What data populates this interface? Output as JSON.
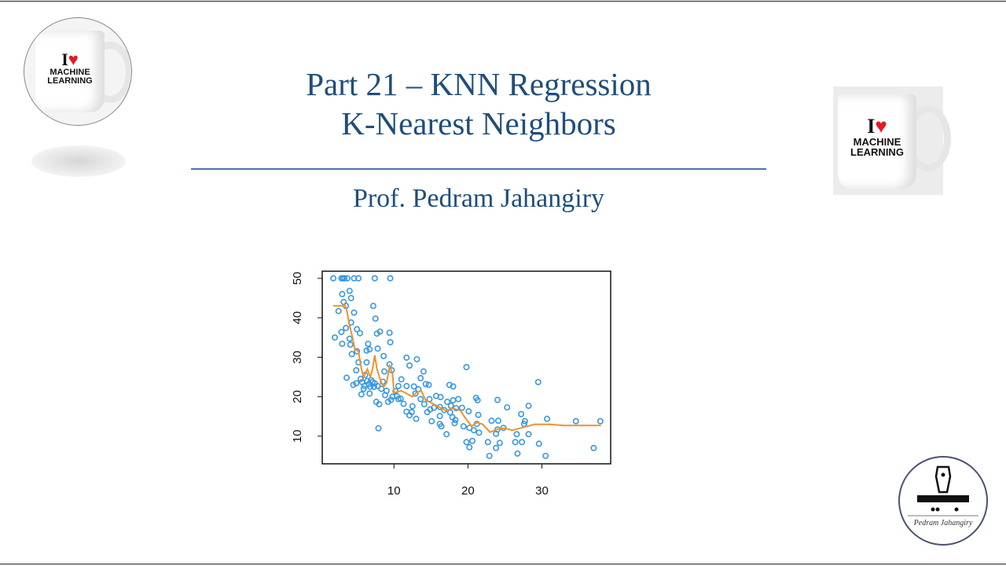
{
  "slide": {
    "title_line1": "Part 21 – KNN Regression",
    "title_line2": "K-Nearest Neighbors",
    "author": "Prof. Pedram Jahangiry",
    "mug_text": {
      "i": "I",
      "heart": "♥",
      "line1": "MACHINE",
      "line2": "LEARNING"
    },
    "logo_signature": "Pedram Jahangiry",
    "colors": {
      "title": "#1f4e79",
      "rule": "#4a72b0",
      "points": "#3a98e0",
      "fit_line": "#f0922b"
    }
  },
  "chart_data": {
    "type": "scatter",
    "title": "",
    "xlabel": "",
    "ylabel": "",
    "xlim": [
      0.3,
      39.3
    ],
    "ylim": [
      3,
      51.8
    ],
    "xticks": [
      10,
      20,
      30
    ],
    "yticks": [
      10,
      20,
      30,
      40,
      50
    ],
    "grid": false,
    "points": [
      [
        1.8,
        50
      ],
      [
        2.9,
        50
      ],
      [
        3.1,
        50
      ],
      [
        3.3,
        50
      ],
      [
        3.7,
        50
      ],
      [
        4.6,
        50
      ],
      [
        5.2,
        50
      ],
      [
        7.4,
        50
      ],
      [
        9.5,
        50
      ],
      [
        2.0,
        35
      ],
      [
        2.5,
        41.7
      ],
      [
        2.9,
        36.4
      ],
      [
        3.0,
        33.4
      ],
      [
        3.0,
        46
      ],
      [
        3.2,
        44
      ],
      [
        3.5,
        43
      ],
      [
        3.6,
        24.8
      ],
      [
        3.5,
        37.4
      ],
      [
        4.0,
        46.8
      ],
      [
        4.2,
        45
      ],
      [
        4.6,
        41.3
      ],
      [
        4.2,
        38.8
      ],
      [
        4.0,
        34.7
      ],
      [
        4.1,
        33.2
      ],
      [
        4.3,
        30.8
      ],
      [
        5.0,
        37.1
      ],
      [
        5.4,
        36.1
      ],
      [
        5.0,
        31.5
      ],
      [
        5.2,
        28.7
      ],
      [
        4.9,
        26.7
      ],
      [
        4.5,
        23
      ],
      [
        4.9,
        23.4
      ],
      [
        5.6,
        20.6
      ],
      [
        5.7,
        23.7
      ],
      [
        6.3,
        28.7
      ],
      [
        6.3,
        31.7
      ],
      [
        6.5,
        33.4
      ],
      [
        6.7,
        32
      ],
      [
        7.2,
        43
      ],
      [
        7.5,
        39.8
      ],
      [
        7.7,
        36
      ],
      [
        8.1,
        36.5
      ],
      [
        7.8,
        32.2
      ],
      [
        7.9,
        12
      ],
      [
        7.6,
        18.7
      ],
      [
        8.0,
        18.1
      ],
      [
        8.6,
        30.3
      ],
      [
        8.7,
        26.4
      ],
      [
        9.4,
        36.2
      ],
      [
        9.5,
        33.8
      ],
      [
        9.4,
        28.2
      ],
      [
        9.7,
        26.7
      ],
      [
        6.7,
        20.8
      ],
      [
        6.0,
        22.7
      ],
      [
        6.4,
        24
      ],
      [
        7.1,
        23.7
      ],
      [
        7.4,
        23.4
      ],
      [
        7.8,
        22.7
      ],
      [
        8.3,
        22
      ],
      [
        8.8,
        20.4
      ],
      [
        9.2,
        18.7
      ],
      [
        9.8,
        20
      ],
      [
        10.2,
        21.4
      ],
      [
        10.6,
        22.7
      ],
      [
        11,
        24.4
      ],
      [
        11.7,
        29.9
      ],
      [
        12.1,
        27.9
      ],
      [
        13.1,
        29.5
      ],
      [
        14,
        26.4
      ],
      [
        13.6,
        24.7
      ],
      [
        14.3,
        23.2
      ],
      [
        14.7,
        23
      ],
      [
        11.7,
        22.7
      ],
      [
        12.7,
        22.6
      ],
      [
        11.7,
        16.2
      ],
      [
        12.4,
        16.1
      ],
      [
        12.1,
        15.3
      ],
      [
        13.0,
        14.4
      ],
      [
        12.5,
        17.6
      ],
      [
        11.3,
        18.2
      ],
      [
        10.6,
        19.4
      ],
      [
        13.6,
        19.4
      ],
      [
        14.1,
        18.1
      ],
      [
        14.5,
        16.1
      ],
      [
        15.1,
        13.8
      ],
      [
        14.8,
        19.4
      ],
      [
        15.7,
        20.2
      ],
      [
        16.3,
        19.9
      ],
      [
        16.2,
        17.4
      ],
      [
        16.2,
        15.1
      ],
      [
        16.2,
        13.1
      ],
      [
        16.4,
        12.5
      ],
      [
        17.1,
        10.5
      ],
      [
        17.5,
        23
      ],
      [
        18,
        22.6
      ],
      [
        17.2,
        18.7
      ],
      [
        17.7,
        17.7
      ],
      [
        18,
        19.1
      ],
      [
        18.7,
        19.4
      ],
      [
        18.4,
        17.1
      ],
      [
        17.9,
        14.8
      ],
      [
        18.2,
        13.3
      ],
      [
        18.3,
        14.1
      ],
      [
        5.5,
        24.5
      ],
      [
        6.1,
        25.5
      ],
      [
        6.6,
        23.2
      ],
      [
        6.9,
        24.2
      ],
      [
        7.3,
        22.5
      ],
      [
        5.9,
        22
      ],
      [
        6.8,
        22.5
      ],
      [
        8.5,
        23.8
      ],
      [
        9.0,
        21.5
      ],
      [
        9.6,
        19.2
      ],
      [
        10.4,
        20.1
      ],
      [
        10.9,
        19.5
      ],
      [
        12.9,
        20.8
      ],
      [
        13.3,
        21.9
      ],
      [
        14.9,
        16.8
      ],
      [
        15.4,
        17.2
      ],
      [
        16.8,
        16.6
      ],
      [
        17.6,
        16
      ],
      [
        19.2,
        17.2
      ],
      [
        19.8,
        27.5
      ],
      [
        19.4,
        12.5
      ],
      [
        20.1,
        16.3
      ],
      [
        19.8,
        8.5
      ],
      [
        20.2,
        7.2
      ],
      [
        20.6,
        8.8
      ],
      [
        20.2,
        12.1
      ],
      [
        20.8,
        11.5
      ],
      [
        21.1,
        19.7
      ],
      [
        21.3,
        19.1
      ],
      [
        21.4,
        15.4
      ],
      [
        21.5,
        10.9
      ],
      [
        21.2,
        13.1
      ],
      [
        22.7,
        8.5
      ],
      [
        22.9,
        5
      ],
      [
        23.2,
        13.9
      ],
      [
        24,
        19.2
      ],
      [
        24.1,
        13.9
      ],
      [
        23.8,
        7
      ],
      [
        24.3,
        8.3
      ],
      [
        23.8,
        10.6
      ],
      [
        24,
        11.7
      ],
      [
        24.8,
        12.1
      ],
      [
        25.3,
        17.3
      ],
      [
        26.4,
        8.5
      ],
      [
        26.6,
        10.5
      ],
      [
        26.7,
        5.6
      ],
      [
        27.2,
        15.6
      ],
      [
        27.3,
        8.5
      ],
      [
        27.7,
        13.8
      ],
      [
        27.6,
        13.1
      ],
      [
        28.2,
        17.7
      ],
      [
        28.2,
        10.5
      ],
      [
        29.5,
        23.7
      ],
      [
        29.6,
        8.1
      ],
      [
        30.5,
        5
      ],
      [
        30.7,
        14.4
      ],
      [
        34.6,
        13.8
      ],
      [
        37,
        7
      ],
      [
        37.9,
        13.8
      ]
    ],
    "fit_line": [
      [
        1.8,
        43
      ],
      [
        3.1,
        43
      ],
      [
        3.3,
        43.5
      ],
      [
        3.6,
        42
      ],
      [
        4.0,
        38
      ],
      [
        4.4,
        35
      ],
      [
        4.7,
        32
      ],
      [
        5.2,
        31.5
      ],
      [
        5.6,
        27
      ],
      [
        5.9,
        25
      ],
      [
        6.4,
        27
      ],
      [
        6.8,
        25
      ],
      [
        7.1,
        27
      ],
      [
        7.4,
        30.5
      ],
      [
        7.7,
        27
      ],
      [
        8.2,
        24
      ],
      [
        8.6,
        22.5
      ],
      [
        9.0,
        23.5
      ],
      [
        9.4,
        27.8
      ],
      [
        9.8,
        26
      ],
      [
        10,
        21
      ],
      [
        11,
        21.5
      ],
      [
        12,
        20.5
      ],
      [
        12.5,
        20
      ],
      [
        13,
        21
      ],
      [
        13.7,
        21.5
      ],
      [
        14.3,
        19
      ],
      [
        15,
        18.5
      ],
      [
        16,
        17.5
      ],
      [
        17,
        16.5
      ],
      [
        18,
        17
      ],
      [
        19,
        16.5
      ],
      [
        19.5,
        15
      ],
      [
        20.5,
        12.5
      ],
      [
        21.2,
        13.5
      ],
      [
        22,
        13
      ],
      [
        23,
        11
      ],
      [
        24,
        11.8
      ],
      [
        25,
        12
      ],
      [
        26,
        11.5
      ],
      [
        27,
        12
      ],
      [
        28,
        12.5
      ],
      [
        29,
        13
      ],
      [
        31,
        13
      ],
      [
        33,
        12.7
      ],
      [
        38,
        12.7
      ]
    ]
  }
}
